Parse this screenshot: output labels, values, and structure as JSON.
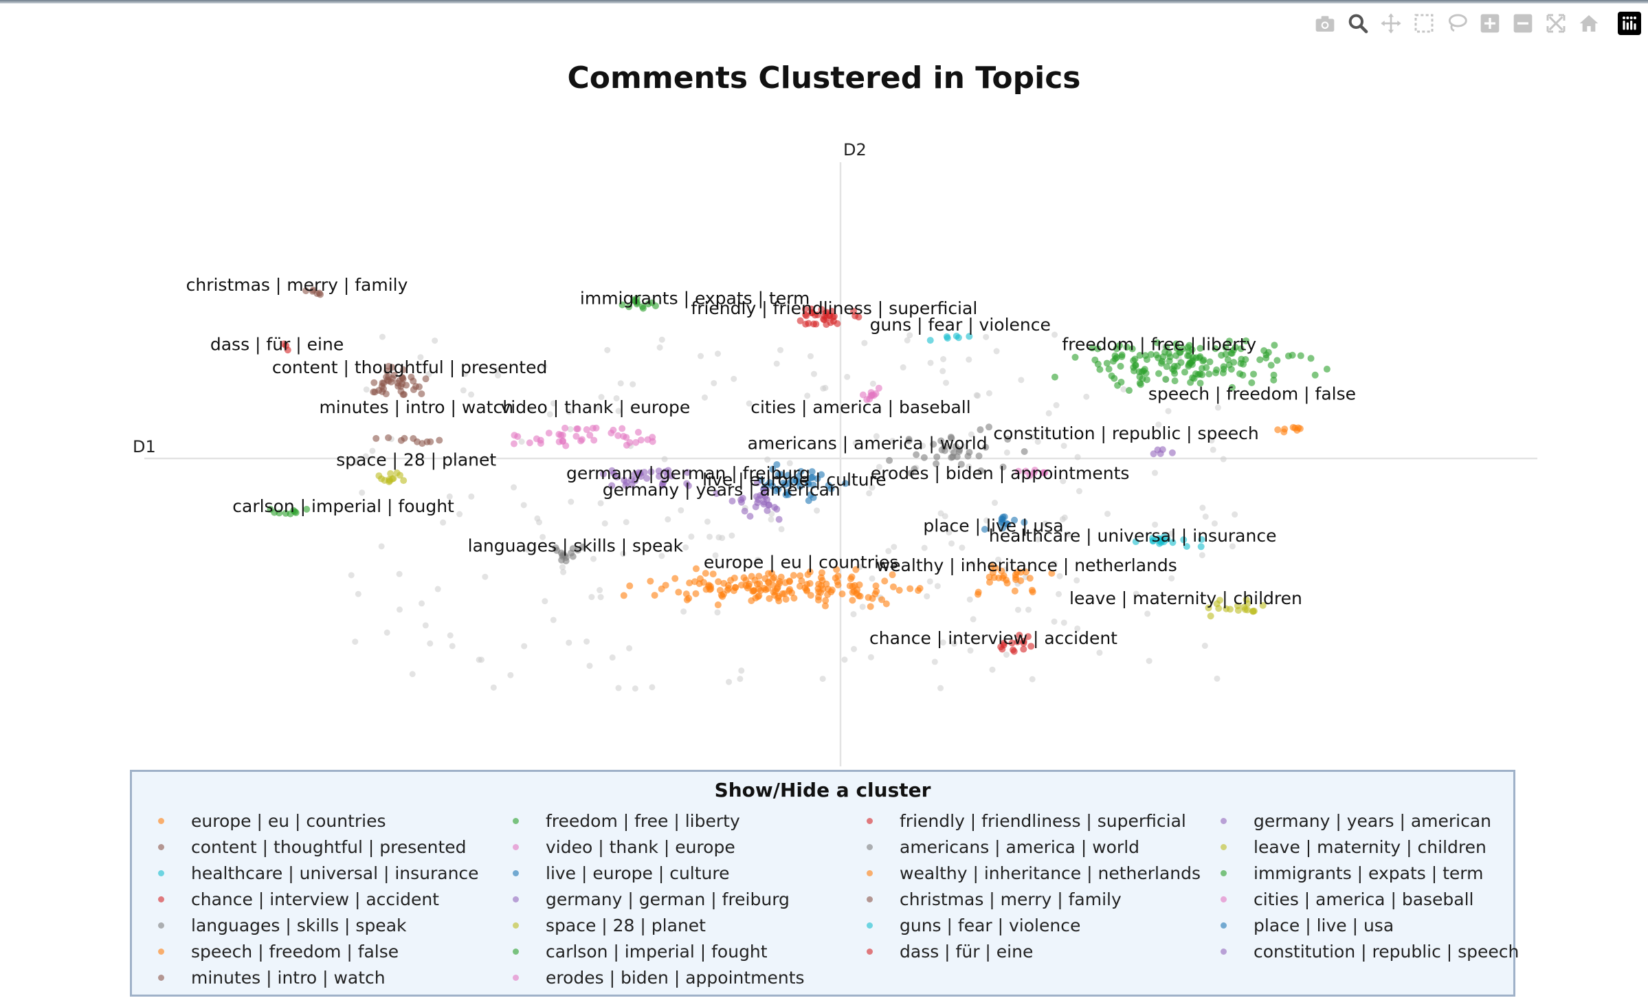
{
  "modebar": {
    "buttons": [
      "camera-icon",
      "zoom-icon",
      "pan-icon",
      "box-select-icon",
      "lasso-select-icon",
      "zoom-in-icon",
      "zoom-out-icon",
      "autoscale-icon",
      "reset-axes-icon",
      "plotly-logo-icon"
    ]
  },
  "colors": {
    "orange": "#ff7f0e",
    "brown": "#8c564b",
    "cyan": "#17becf",
    "red": "#d62728",
    "gray": "#7f7f7f",
    "green": "#2ca02c",
    "pink": "#e377c2",
    "blue": "#1f77b4",
    "purple": "#9467bd",
    "olive": "#bcbd22",
    "background_points": "#cccccc"
  },
  "chart_data": {
    "type": "scatter",
    "title": "Comments Clustered in Topics",
    "xlabel": "D1",
    "ylabel": "D2",
    "xlim": [
      -10.5,
      10.5
    ],
    "ylim": [
      -9.0,
      9.0
    ],
    "grid": false,
    "legend": {
      "title": "Show/Hide a cluster",
      "placement": "bottom",
      "columns": [
        [
          "europe | eu | countries",
          "content | thoughtful | presented",
          "healthcare | universal | insurance",
          "chance | interview | accident",
          "languages | skills | speak",
          "speech | freedom | false",
          "minutes | intro | watch"
        ],
        [
          "freedom | free | liberty",
          "video | thank | europe",
          "live | europe | culture",
          "germany | german | freiburg",
          "space | 28 | planet",
          "carlson | imperial | fought",
          "erodes | biden | appointments"
        ],
        [
          "friendly | friendliness | superficial",
          "americans | america | world",
          "wealthy | inheritance | netherlands",
          "christmas | merry | family",
          "guns | fear | violence",
          "dass | für | eine"
        ],
        [
          "germany | years | american",
          "leave | maternity | children",
          "immigrants | expats | term",
          "cities | america | baseball",
          "place | live | usa",
          "constitution | republic | speech"
        ]
      ]
    },
    "series": [
      {
        "name": "europe | eu | countries",
        "color": "#ff7f0e",
        "center": [
          -0.8,
          -3.9
        ],
        "spread": [
          1.9,
          0.45
        ],
        "count": 160
      },
      {
        "name": "content | thoughtful | presented",
        "color": "#8c564b",
        "center": [
          -6.7,
          2.3
        ],
        "spread": [
          0.45,
          0.45
        ],
        "count": 40
      },
      {
        "name": "healthcare | universal | insurance",
        "color": "#17becf",
        "center": [
          4.9,
          -2.5
        ],
        "spread": [
          0.5,
          0.15
        ],
        "count": 18
      },
      {
        "name": "chance | interview | accident",
        "color": "#d62728",
        "center": [
          2.6,
          -5.6
        ],
        "spread": [
          0.3,
          0.25
        ],
        "count": 14
      },
      {
        "name": "languages | skills | speak",
        "color": "#7f7f7f",
        "center": [
          -4.2,
          -2.9
        ],
        "spread": [
          0.25,
          0.3
        ],
        "count": 14
      },
      {
        "name": "speech | freedom | false",
        "color": "#ff7f0e",
        "center": [
          6.8,
          0.9
        ],
        "spread": [
          0.3,
          0.1
        ],
        "count": 8
      },
      {
        "name": "minutes | intro | watch",
        "color": "#8c564b",
        "center": [
          -6.6,
          0.55
        ],
        "spread": [
          0.6,
          0.1
        ],
        "count": 10
      },
      {
        "name": "freedom | free | liberty",
        "color": "#2ca02c",
        "center": [
          5.2,
          2.9
        ],
        "spread": [
          1.7,
          0.7
        ],
        "count": 150
      },
      {
        "name": "video | thank | europe",
        "color": "#e377c2",
        "center": [
          -3.8,
          0.7
        ],
        "spread": [
          0.9,
          0.35
        ],
        "count": 40
      },
      {
        "name": "live | europe | culture",
        "color": "#1f77b4",
        "center": [
          -0.6,
          -0.7
        ],
        "spread": [
          0.6,
          0.6
        ],
        "count": 38
      },
      {
        "name": "germany | german | freiburg",
        "color": "#9467bd",
        "center": [
          -2.9,
          -0.6
        ],
        "spread": [
          0.8,
          0.35
        ],
        "count": 30
      },
      {
        "name": "space | 28 | planet",
        "color": "#bcbd22",
        "center": [
          -6.8,
          -0.55
        ],
        "spread": [
          0.25,
          0.25
        ],
        "count": 12
      },
      {
        "name": "carlson | imperial | fought",
        "color": "#2ca02c",
        "center": [
          -8.3,
          -1.6
        ],
        "spread": [
          0.3,
          0.1
        ],
        "count": 9
      },
      {
        "name": "erodes | biden | appointments",
        "color": "#e377c2",
        "center": [
          2.9,
          -0.45
        ],
        "spread": [
          0.4,
          0.12
        ],
        "count": 8
      },
      {
        "name": "friendly | friendliness | superficial",
        "color": "#d62728",
        "center": [
          -0.2,
          4.3
        ],
        "spread": [
          0.5,
          0.3
        ],
        "count": 32
      },
      {
        "name": "americans | america | world",
        "color": "#7f7f7f",
        "center": [
          1.6,
          0.3
        ],
        "spread": [
          0.9,
          0.8
        ],
        "count": 34
      },
      {
        "name": "wealthy | inheritance | netherlands",
        "color": "#ff7f0e",
        "center": [
          2.6,
          -3.6
        ],
        "spread": [
          0.6,
          0.5
        ],
        "count": 26
      },
      {
        "name": "christmas | merry | family",
        "color": "#8c564b",
        "center": [
          -8.0,
          5.1
        ],
        "spread": [
          0.2,
          0.1
        ],
        "count": 6
      },
      {
        "name": "guns | fear | violence",
        "color": "#17becf",
        "center": [
          1.7,
          3.7
        ],
        "spread": [
          0.4,
          0.1
        ],
        "count": 6
      },
      {
        "name": "dass | für | eine",
        "color": "#d62728",
        "center": [
          -8.4,
          3.3
        ],
        "spread": [
          0.1,
          0.3
        ],
        "count": 3
      },
      {
        "name": "germany | years | american",
        "color": "#9467bd",
        "center": [
          -1.3,
          -1.3
        ],
        "spread": [
          0.6,
          0.4
        ],
        "count": 26
      },
      {
        "name": "leave | maternity | children",
        "color": "#bcbd22",
        "center": [
          6.1,
          -4.5
        ],
        "spread": [
          0.6,
          0.2
        ],
        "count": 18
      },
      {
        "name": "immigrants | expats | term",
        "color": "#2ca02c",
        "center": [
          -3.1,
          4.7
        ],
        "spread": [
          0.3,
          0.25
        ],
        "count": 12
      },
      {
        "name": "cities | america | baseball",
        "color": "#e377c2",
        "center": [
          0.5,
          1.9
        ],
        "spread": [
          0.3,
          0.3
        ],
        "count": 10
      },
      {
        "name": "place | live | usa",
        "color": "#1f77b4",
        "center": [
          2.5,
          -1.9
        ],
        "spread": [
          0.3,
          0.3
        ],
        "count": 12
      },
      {
        "name": "constitution | republic | speech",
        "color": "#9467bd",
        "center": [
          4.8,
          0.2
        ],
        "spread": [
          0.2,
          0.1
        ],
        "count": 5
      }
    ],
    "background_points": {
      "color": "#cccccc",
      "count": 240,
      "xrange": [
        -7.5,
        6.0
      ],
      "yrange": [
        -7.0,
        3.8
      ]
    },
    "annotations": [
      {
        "text": "christmas | merry | family",
        "x": -8.2,
        "y": 5.1
      },
      {
        "text": "immigrants | expats | term",
        "x": -2.2,
        "y": 4.7
      },
      {
        "text": "friendly | friendliness | superficial",
        "x": -0.1,
        "y": 4.4
      },
      {
        "text": "guns | fear | violence",
        "x": 1.8,
        "y": 3.9
      },
      {
        "text": "dass | für | eine",
        "x": -8.5,
        "y": 3.3
      },
      {
        "text": "freedom | free | liberty",
        "x": 4.8,
        "y": 3.3
      },
      {
        "text": "content | thoughtful | presented",
        "x": -6.5,
        "y": 2.6
      },
      {
        "text": "speech | freedom | false",
        "x": 6.2,
        "y": 1.8
      },
      {
        "text": "minutes | intro | watch",
        "x": -6.4,
        "y": 1.4
      },
      {
        "text": "video | thank | europe",
        "x": -3.7,
        "y": 1.4
      },
      {
        "text": "cities | america | baseball",
        "x": 0.3,
        "y": 1.4
      },
      {
        "text": "constitution | republic | speech",
        "x": 4.3,
        "y": 0.6
      },
      {
        "text": "americans | america | world",
        "x": 0.4,
        "y": 0.3
      },
      {
        "text": "space | 28 | planet",
        "x": -6.4,
        "y": -0.2
      },
      {
        "text": "germany | german | freiburg",
        "x": -2.3,
        "y": -0.6
      },
      {
        "text": "erodes | biden | appointments",
        "x": 2.4,
        "y": -0.6
      },
      {
        "text": "live | europe | culture",
        "x": -0.7,
        "y": -0.8
      },
      {
        "text": "germany | years | american",
        "x": -1.8,
        "y": -1.1
      },
      {
        "text": "carlson | imperial | fought",
        "x": -7.5,
        "y": -1.6
      },
      {
        "text": "place | live | usa",
        "x": 2.3,
        "y": -2.2
      },
      {
        "text": "healthcare | universal | insurance",
        "x": 4.4,
        "y": -2.5
      },
      {
        "text": "languages | skills | speak",
        "x": -4.0,
        "y": -2.8
      },
      {
        "text": "europe | eu | countries",
        "x": -0.6,
        "y": -3.3
      },
      {
        "text": "wealthy | inheritance | netherlands",
        "x": 2.8,
        "y": -3.4
      },
      {
        "text": "leave | maternity | children",
        "x": 5.2,
        "y": -4.4
      },
      {
        "text": "chance | interview | accident",
        "x": 2.3,
        "y": -5.6
      }
    ]
  }
}
